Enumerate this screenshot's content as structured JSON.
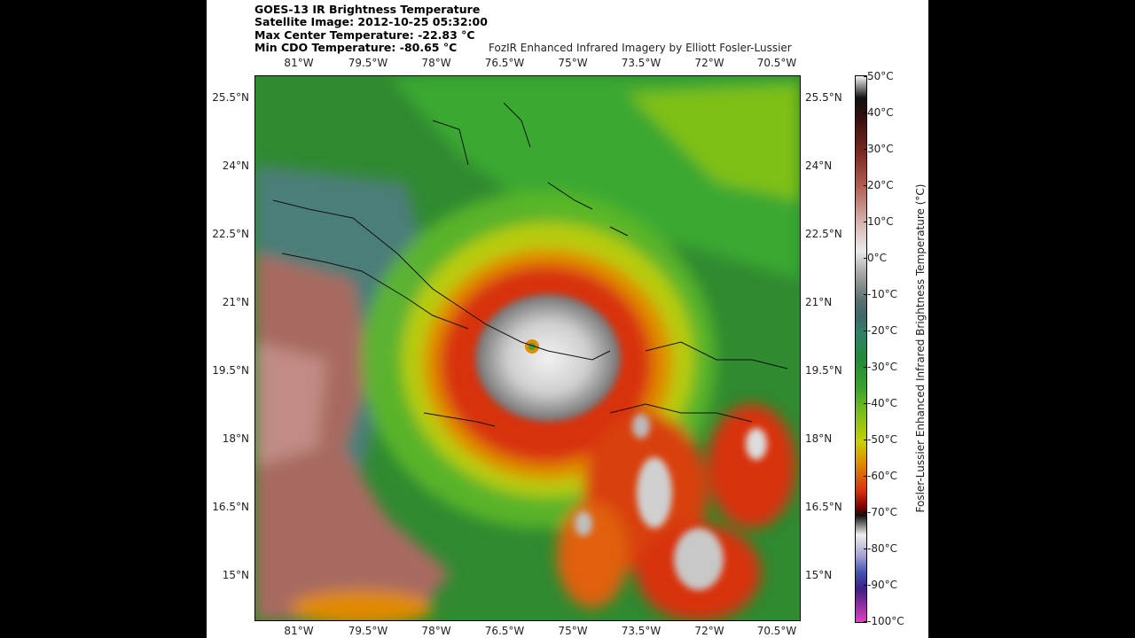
{
  "header": {
    "title": "GOES-13 IR Brightness Temperature",
    "satellite_image": "Satellite Image: 2012-10-25 05:32:00",
    "max_center_temp": "Max Center Temperature: -22.83 °C",
    "min_cdo_temp": "Min CDO Temperature: -80.65 °C",
    "credit": "FozIR Enhanced Infrared Imagery by Elliott Fosler-Lussier"
  },
  "map": {
    "lon_ticks": [
      "81°W",
      "79.5°W",
      "78°W",
      "76.5°W",
      "75°W",
      "73.5°W",
      "72°W",
      "70.5°W"
    ],
    "lat_ticks": [
      "25.5°N",
      "24°N",
      "22.5°N",
      "21°N",
      "19.5°N",
      "18°N",
      "16.5°N",
      "15°N"
    ],
    "storm_center": {
      "lon": -76.0,
      "lat": 20.0
    }
  },
  "colorbar": {
    "label": "Fosler-Lussier Enhanced Infrared Brightness Temperature (°C)",
    "ticks": [
      "50°C",
      "40°C",
      "30°C",
      "20°C",
      "10°C",
      "0°C",
      "-10°C",
      "-20°C",
      "-30°C",
      "-40°C",
      "-50°C",
      "-60°C",
      "-70°C",
      "-80°C",
      "-90°C",
      "-100°C"
    ]
  }
}
